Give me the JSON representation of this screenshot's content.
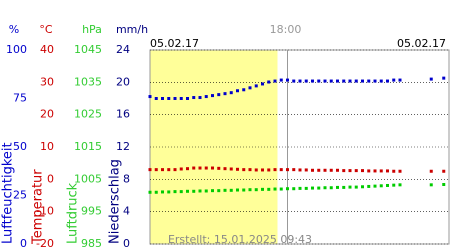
{
  "chart_data": {
    "type": "scatter",
    "date_left": "05.02.17",
    "date_right": "05.02.17",
    "footer": "Erstellt: 15.01.2025 09:43",
    "xlim": [
      7,
      31
    ],
    "xticks": [
      {
        "value": 18,
        "label": "18:00"
      }
    ],
    "highlight": {
      "xlim": [
        7,
        17.2
      ],
      "color": "#ffff99"
    },
    "grid": true,
    "axes": [
      {
        "unit": "%",
        "title": "Luftfeuchtigkeit",
        "color": "#0000cc",
        "ylim": [
          0,
          100
        ],
        "yticks": [
          0,
          25,
          50,
          75,
          100
        ]
      },
      {
        "unit": "°C",
        "title": "Temperatur",
        "color": "#cc0000",
        "ylim": [
          -20,
          40
        ],
        "yticks": [
          -20,
          -10,
          0,
          10,
          20,
          30,
          40
        ]
      },
      {
        "unit": "hPa",
        "title": "Luftdruck",
        "color": "#33cc33",
        "ylim": [
          985,
          1045
        ],
        "yticks": [
          985,
          995,
          1005,
          1015,
          1025,
          1035,
          1045
        ]
      },
      {
        "unit": "mm/h",
        "title": "Niederschlag",
        "color": "#000080",
        "ylim": [
          0,
          24
        ],
        "yticks": [
          0,
          4,
          8,
          12,
          16,
          20,
          24
        ]
      }
    ],
    "x": [
      7,
      7.5,
      8,
      8.5,
      9,
      9.5,
      10,
      10.5,
      11,
      11.5,
      12,
      12.5,
      13,
      13.5,
      14,
      14.5,
      15,
      15.5,
      16,
      16.5,
      17,
      17.5,
      18,
      18.5,
      19,
      19.5,
      20,
      20.5,
      21,
      21.5,
      22,
      22.5,
      23,
      23.5,
      24,
      24.5,
      25,
      25.5,
      26,
      26.5,
      27,
      29.5,
      30.5
    ],
    "series": [
      {
        "name": "Luftfeuchtigkeit",
        "axis": 0,
        "color": "#0000cc",
        "values": [
          76,
          75,
          75,
          75,
          75,
          75,
          75,
          75.5,
          75.5,
          76,
          76.5,
          77,
          77.5,
          78,
          79,
          79.5,
          80.5,
          81.5,
          82.5,
          83.5,
          84,
          84.5,
          84.5,
          84,
          84,
          84,
          84,
          84,
          84,
          84,
          84,
          84,
          84,
          84,
          84,
          84,
          84,
          84,
          84,
          84.5,
          84.5,
          85,
          85.5
        ]
      },
      {
        "name": "Temperatur",
        "axis": 1,
        "color": "#cc0000",
        "values": [
          3,
          3,
          3,
          3,
          3,
          3.2,
          3.3,
          3.5,
          3.5,
          3.5,
          3.5,
          3.4,
          3.3,
          3.2,
          3.1,
          3.0,
          3.0,
          2.9,
          2.9,
          2.9,
          3.0,
          3.0,
          3.0,
          3.0,
          2.9,
          2.9,
          2.8,
          2.8,
          2.8,
          2.8,
          2.8,
          2.7,
          2.7,
          2.7,
          2.7,
          2.6,
          2.6,
          2.6,
          2.6,
          2.5,
          2.5,
          2.5,
          2.5
        ]
      },
      {
        "name": "Luftdruck",
        "axis": 2,
        "color": "#00cc00",
        "values": [
          1001,
          1001,
          1001.1,
          1001.1,
          1001.2,
          1001.2,
          1001.3,
          1001.3,
          1001.4,
          1001.4,
          1001.5,
          1001.5,
          1001.6,
          1001.6,
          1001.7,
          1001.7,
          1001.8,
          1001.8,
          1001.9,
          1001.9,
          1002,
          1002,
          1002.1,
          1002.1,
          1002.2,
          1002.2,
          1002.3,
          1002.3,
          1002.4,
          1002.4,
          1002.5,
          1002.5,
          1002.6,
          1002.6,
          1002.7,
          1002.8,
          1002.9,
          1003,
          1003.1,
          1003.2,
          1003.3,
          1003.3,
          1003.4
        ]
      }
    ]
  }
}
